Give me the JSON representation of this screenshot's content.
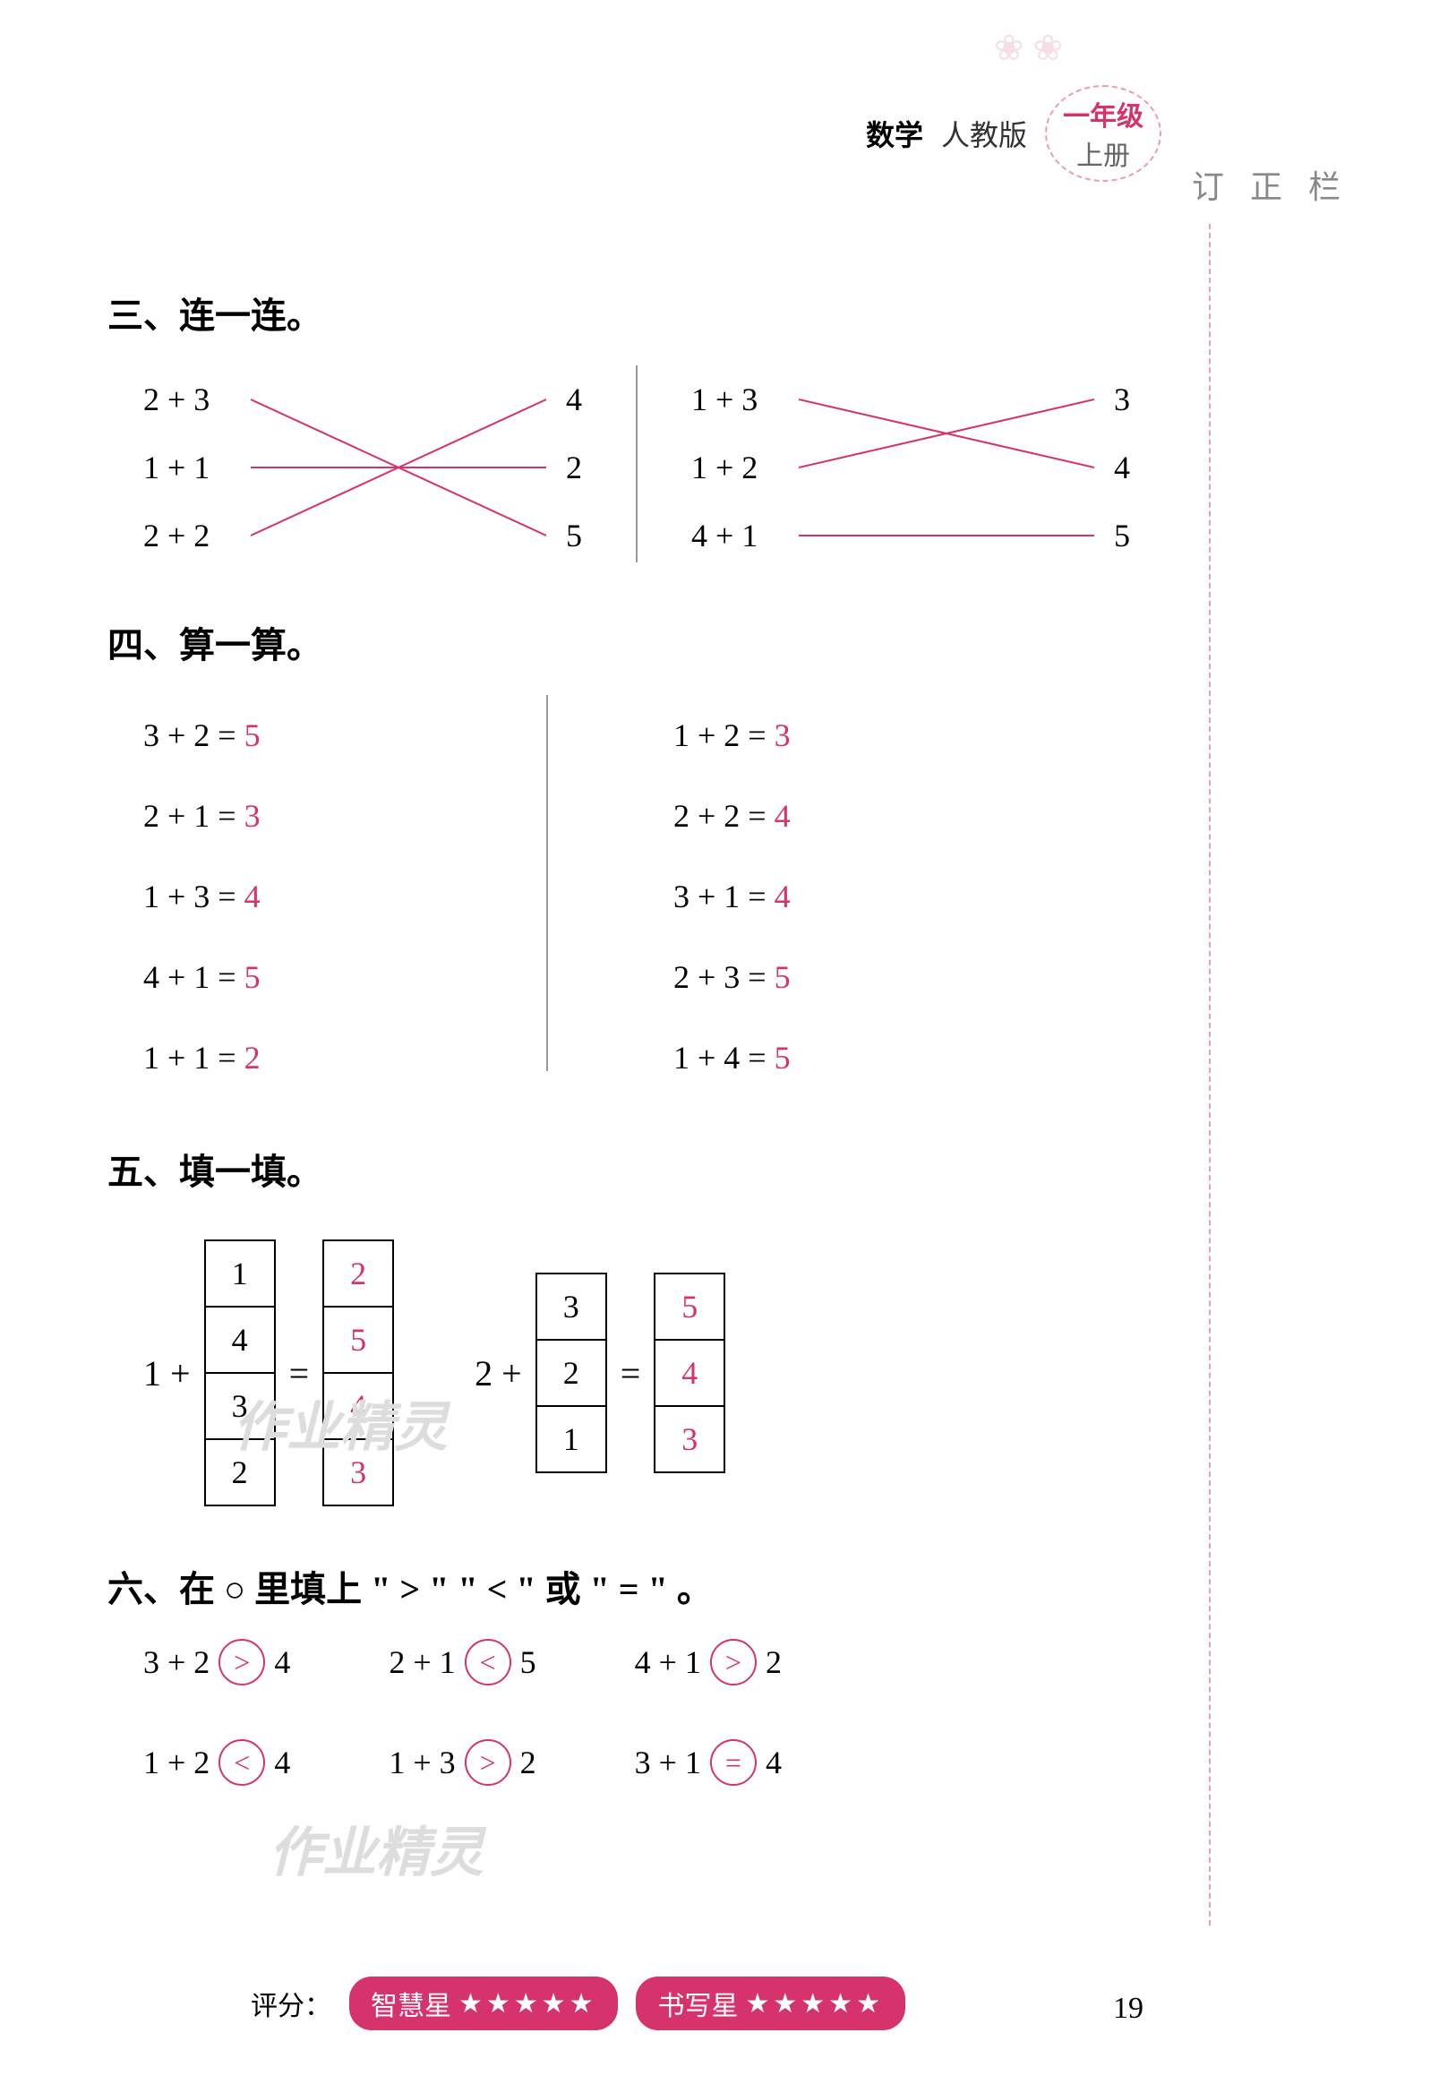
{
  "header": {
    "subject": "数学",
    "edition": "人教版",
    "grade_top": "一年级",
    "grade_bottom": "上册",
    "correction": "订 正 栏"
  },
  "section3": {
    "title": "三、连一连。",
    "left": {
      "exprs": [
        "2 + 3",
        "1 + 1",
        "2 + 2"
      ],
      "results": [
        "4",
        "2",
        "5"
      ],
      "lines": [
        [
          0,
          2
        ],
        [
          1,
          1
        ],
        [
          2,
          0
        ]
      ]
    },
    "right": {
      "exprs": [
        "1 + 3",
        "1 + 2",
        "4 + 1"
      ],
      "results": [
        "3",
        "4",
        "5"
      ],
      "lines": [
        [
          0,
          1
        ],
        [
          1,
          0
        ],
        [
          2,
          2
        ]
      ]
    }
  },
  "section4": {
    "title": "四、算一算。",
    "col1": [
      {
        "expr": "3 + 2 = ",
        "ans": "5"
      },
      {
        "expr": "2 + 1 = ",
        "ans": "3"
      },
      {
        "expr": "1 + 3 = ",
        "ans": "4"
      },
      {
        "expr": "4 + 1 = ",
        "ans": "5"
      },
      {
        "expr": "1 + 1 = ",
        "ans": "2"
      }
    ],
    "col2": [
      {
        "expr": "1 + 2 = ",
        "ans": "3"
      },
      {
        "expr": "2 + 2 = ",
        "ans": "4"
      },
      {
        "expr": "3 + 1 = ",
        "ans": "4"
      },
      {
        "expr": "2 + 3 = ",
        "ans": "5"
      },
      {
        "expr": "1 + 4 = ",
        "ans": "5"
      }
    ]
  },
  "section5": {
    "title": "五、填一填。",
    "eq1": {
      "prefix": "1 +",
      "input": [
        "1",
        "4",
        "3",
        "2"
      ],
      "eq": "=",
      "output": [
        "2",
        "5",
        "4",
        "3"
      ]
    },
    "eq2": {
      "prefix": "2 +",
      "input": [
        "3",
        "2",
        "1"
      ],
      "eq": "=",
      "output": [
        "5",
        "4",
        "3"
      ]
    }
  },
  "section6": {
    "title": "六、在 ○ 里填上 \" > \" \" < \" 或 \" = \" 。",
    "row1": [
      {
        "l": "3 + 2",
        "op": ">",
        "r": "4"
      },
      {
        "l": "2 + 1",
        "op": "<",
        "r": "5"
      },
      {
        "l": "4 + 1",
        "op": ">",
        "r": "2"
      }
    ],
    "row2": [
      {
        "l": "1 + 2",
        "op": "<",
        "r": "4"
      },
      {
        "l": "1 + 3",
        "op": ">",
        "r": "2"
      },
      {
        "l": "3 + 1",
        "op": "=",
        "r": "4"
      }
    ]
  },
  "watermark": "作业精灵",
  "footer": {
    "label": "评分：",
    "pill1": "智慧星",
    "pill2": "书写星",
    "stars": "★★★★★",
    "page": "19"
  },
  "colors": {
    "answer": "#d6336c",
    "line": "#d6336c",
    "text": "#000000"
  }
}
